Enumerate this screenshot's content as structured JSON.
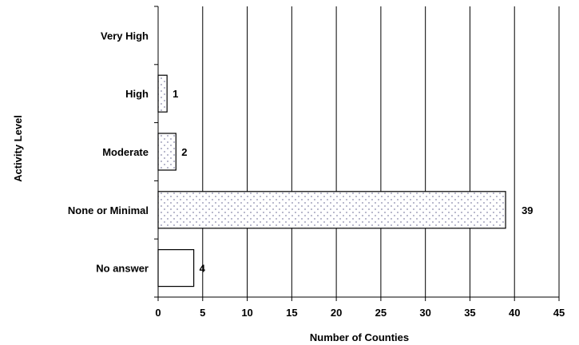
{
  "chart_data": {
    "type": "bar",
    "orientation": "horizontal",
    "title": "",
    "xlabel": "Number of Counties",
    "ylabel": "Activity Level",
    "categories": [
      "Very High",
      "High",
      "Moderate",
      "None or Minimal",
      "No answer"
    ],
    "values": [
      0,
      1,
      2,
      39,
      4
    ],
    "data_labels": [
      "",
      "1",
      "2",
      "39",
      "4"
    ],
    "bar_fills": [
      "dotted",
      "dotted",
      "dotted",
      "dotted",
      "white"
    ],
    "xlim": [
      0,
      45
    ],
    "xticks": [
      "0",
      "5",
      "10",
      "15",
      "20",
      "25",
      "30",
      "35",
      "40",
      "45"
    ],
    "grid": "vertical",
    "legend": "none"
  }
}
